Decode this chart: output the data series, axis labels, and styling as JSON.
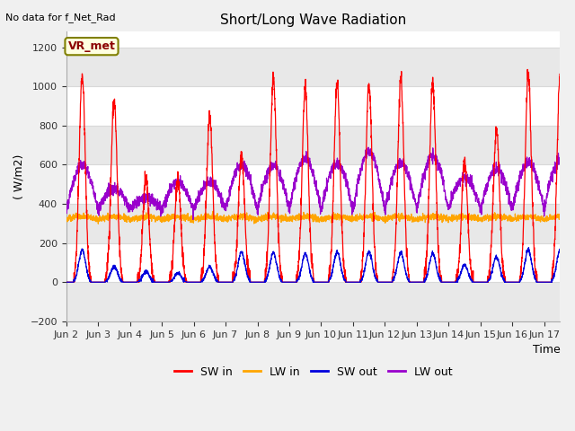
{
  "title": "Short/Long Wave Radiation",
  "top_left_text": "No data for f_Net_Rad",
  "ylabel": "( W/m2)",
  "xlabel": "Time",
  "ylim": [
    -200,
    1280
  ],
  "yticks": [
    -200,
    0,
    200,
    400,
    600,
    800,
    1000,
    1200
  ],
  "xlim_days": [
    1.0,
    16.5
  ],
  "xtick_labels": [
    "Jun 2",
    "Jun 3",
    "Jun 4",
    "Jun 5",
    "Jun 6",
    "Jun 7",
    "Jun 8",
    "Jun 9",
    "Jun 10",
    "Jun 11",
    "Jun 12",
    "Jun 13",
    "Jun 14",
    "Jun 15",
    "Jun 16",
    "Jun 17"
  ],
  "xtick_positions": [
    1,
    2,
    3,
    4,
    5,
    6,
    7,
    8,
    9,
    10,
    11,
    12,
    13,
    14,
    15,
    16
  ],
  "legend_box_text": "VR_met",
  "line_colors": {
    "SW_in": "#ff0000",
    "LW_in": "#ffa500",
    "SW_out": "#0000dd",
    "LW_out": "#9900cc"
  },
  "legend_labels": [
    "SW in",
    "LW in",
    "SW out",
    "LW out"
  ],
  "figure_bg_color": "#f0f0f0",
  "plot_bg_color": "#ffffff",
  "grid_color": "#d8d8d8",
  "SW_in_peaks": [
    1060,
    930,
    530,
    530,
    840,
    650,
    1045,
    990,
    1010,
    1015,
    1040,
    1020,
    620,
    780,
    1065,
    1060
  ],
  "SW_out_peaks": [
    165,
    80,
    55,
    45,
    80,
    155,
    150,
    145,
    155,
    155,
    150,
    145,
    90,
    130,
    165,
    165
  ],
  "LW_out_peaks": [
    595,
    480,
    430,
    510,
    510,
    600,
    595,
    630,
    605,
    665,
    610,
    645,
    540,
    575,
    615,
    625
  ],
  "LW_in_base": 320,
  "LW_in_variation": 60,
  "n_points": 3000
}
